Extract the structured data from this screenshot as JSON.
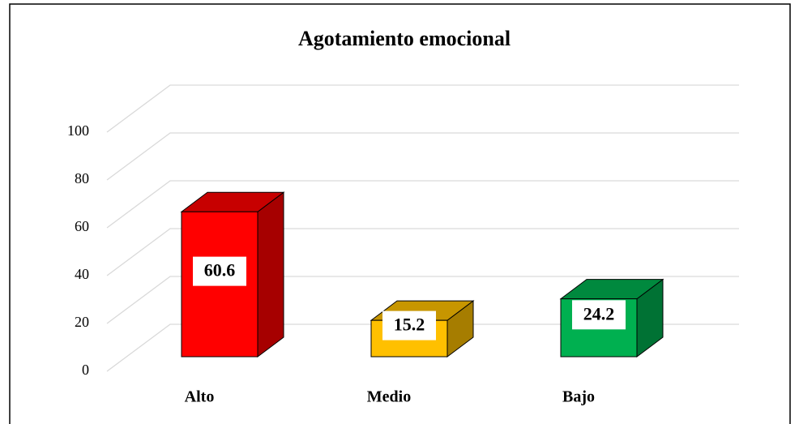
{
  "chart_data": {
    "type": "bar3d",
    "title": "Agotamiento emocional",
    "categories": [
      "Alto",
      "Medio",
      "Bajo"
    ],
    "values": [
      60.6,
      15.2,
      24.2
    ],
    "colors": [
      "#ff0000",
      "#ffc000",
      "#00b050"
    ],
    "ylim": [
      0,
      100
    ],
    "yticks": [
      0,
      20,
      40,
      60,
      80,
      100
    ],
    "grid": true
  }
}
